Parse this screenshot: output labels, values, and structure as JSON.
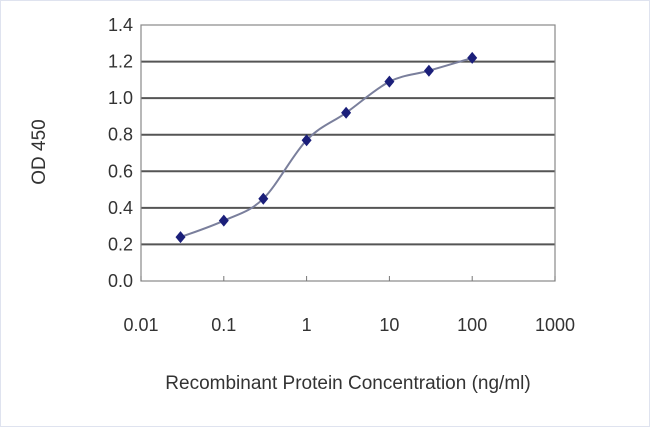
{
  "chart_data": {
    "type": "line",
    "title": "",
    "xlabel": "Recombinant Protein Concentration (ng/ml)",
    "ylabel": "OD 450",
    "x_scale": "log",
    "xlim": [
      0.01,
      1000
    ],
    "ylim": [
      0.0,
      1.4
    ],
    "x_ticks": [
      "0.01",
      "0.1",
      "1",
      "10",
      "100",
      "1000"
    ],
    "y_ticks": [
      "0.0",
      "0.2",
      "0.4",
      "0.6",
      "0.8",
      "1.0",
      "1.2",
      "1.4"
    ],
    "grid": "horizontal",
    "legend": "none",
    "series": [
      {
        "x": [
          0.03,
          0.1,
          0.3,
          1,
          3,
          10,
          30,
          100
        ],
        "y": [
          0.24,
          0.33,
          0.45,
          0.77,
          0.92,
          1.09,
          1.15,
          1.22
        ],
        "marker": "diamond",
        "marker_color": "#1b1f7a",
        "line_color": "#7a7f9c"
      }
    ]
  }
}
